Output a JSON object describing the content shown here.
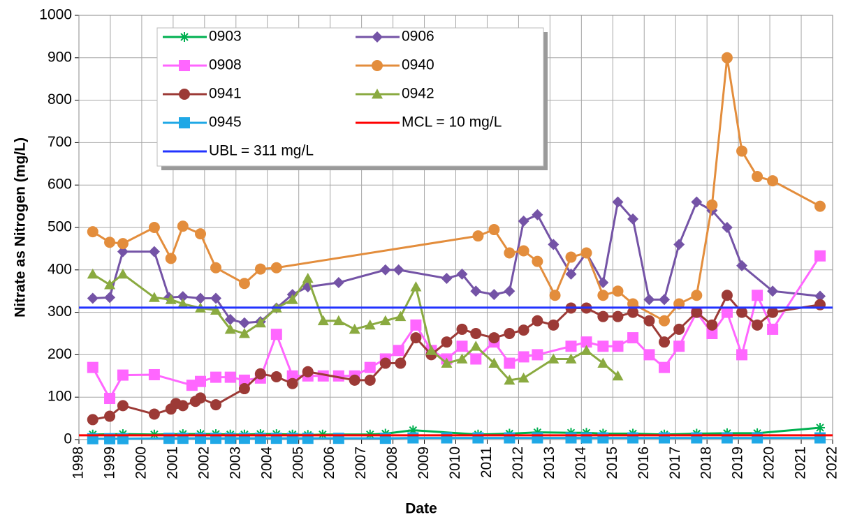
{
  "chart_data": {
    "type": "line",
    "x_label": "Date",
    "y_label": "Nitrate as Nitrogen (mg/L)",
    "xlim": [
      1998,
      2022
    ],
    "xticks": [
      1998,
      1999,
      2000,
      2001,
      2002,
      2003,
      2004,
      2005,
      2006,
      2007,
      2008,
      2009,
      2010,
      2011,
      2012,
      2013,
      2014,
      2015,
      2016,
      2017,
      2018,
      2019,
      2020,
      2021,
      2022
    ],
    "ylim": [
      0,
      1000
    ],
    "yticks": [
      0,
      100,
      200,
      300,
      400,
      500,
      600,
      700,
      800,
      900,
      1000
    ],
    "grid": true,
    "legend": "upper left",
    "series": [
      {
        "name": "0903",
        "color": "#00b050",
        "marker": "asterisk",
        "x": [
          1998.44,
          1999.4,
          2000.4,
          2001.31,
          2001.87,
          2002.36,
          2002.82,
          2003.27,
          2003.78,
          2004.29,
          2004.8,
          2005.29,
          2005.76,
          2007.27,
          2007.76,
          2008.64,
          2010.71,
          2011.71,
          2012.6,
          2013.67,
          2014.16,
          2014.69,
          2015.64,
          2016.64,
          2017.67,
          2018.64,
          2019.6,
          2021.6
        ],
        "values": [
          12,
          13,
          12,
          13,
          13,
          13,
          12,
          12,
          13,
          13,
          12,
          11,
          12,
          12,
          14,
          22,
          12,
          14,
          17,
          16,
          16,
          14,
          14,
          12,
          14,
          15,
          15,
          28
        ]
      },
      {
        "name": "0906",
        "color": "#7453a6",
        "marker": "diamond",
        "x": [
          1998.44,
          1998.98,
          1999.4,
          2000.4,
          2000.87,
          2001.31,
          2001.87,
          2002.36,
          2002.82,
          2003.27,
          2003.78,
          2004.29,
          2004.8,
          2005.29,
          2006.27,
          2007.76,
          2008.18,
          2009.71,
          2010.2,
          2010.64,
          2011.22,
          2011.71,
          2012.16,
          2012.6,
          2013.11,
          2013.67,
          2014.16,
          2014.69,
          2015.16,
          2015.64,
          2016.16,
          2016.64,
          2017.11,
          2017.67,
          2018.16,
          2018.64,
          2019.11,
          2020.09,
          2021.6
        ],
        "values": [
          333,
          335,
          443,
          443,
          335,
          337,
          333,
          333,
          283,
          275,
          278,
          310,
          342,
          360,
          370,
          400,
          400,
          380,
          390,
          350,
          342,
          350,
          515,
          530,
          460,
          390,
          440,
          370,
          560,
          520,
          330,
          330,
          460,
          560,
          540,
          500,
          410,
          350,
          338
        ]
      },
      {
        "name": "0908",
        "color": "#ff66ff",
        "marker": "square",
        "x": [
          1998.44,
          1998.98,
          1999.4,
          2000.4,
          2001.6,
          2001.87,
          2002.36,
          2002.82,
          2003.27,
          2003.78,
          2004.29,
          2004.8,
          2005.29,
          2005.78,
          2006.27,
          2006.78,
          2007.27,
          2007.76,
          2008.18,
          2008.73,
          2009.22,
          2009.71,
          2010.2,
          2010.64,
          2011.22,
          2011.71,
          2012.16,
          2012.6,
          2013.67,
          2014.16,
          2014.69,
          2015.16,
          2015.64,
          2016.16,
          2016.64,
          2017.11,
          2017.67,
          2018.16,
          2018.64,
          2019.11,
          2019.6,
          2020.09,
          2021.6
        ],
        "values": [
          170,
          97,
          152,
          153,
          128,
          137,
          147,
          147,
          140,
          145,
          248,
          150,
          150,
          150,
          150,
          150,
          170,
          190,
          210,
          270,
          210,
          190,
          220,
          190,
          230,
          180,
          195,
          200,
          220,
          230,
          220,
          220,
          240,
          200,
          170,
          220,
          300,
          250,
          300,
          200,
          340,
          260,
          433
        ]
      },
      {
        "name": "0940",
        "color": "#e38d3c",
        "marker": "circle",
        "x": [
          1998.44,
          1998.98,
          1999.4,
          2000.4,
          2000.93,
          2001.31,
          2001.87,
          2002.36,
          2003.27,
          2003.78,
          2004.29,
          2010.71,
          2011.22,
          2011.71,
          2012.16,
          2012.6,
          2013.16,
          2013.67,
          2014.16,
          2014.69,
          2015.16,
          2015.64,
          2016.64,
          2017.11,
          2017.67,
          2018.16,
          2018.64,
          2019.11,
          2019.6,
          2020.09,
          2021.6
        ],
        "values": [
          490,
          465,
          462,
          500,
          427,
          503,
          485,
          405,
          368,
          402,
          405,
          480,
          495,
          440,
          445,
          420,
          340,
          430,
          440,
          340,
          350,
          320,
          280,
          320,
          340,
          553,
          900,
          680,
          620,
          610,
          550
        ]
      },
      {
        "name": "0941",
        "color": "#9c3a36",
        "marker": "circle",
        "x": [
          1998.44,
          1998.98,
          1999.4,
          2000.4,
          2000.93,
          2001.09,
          2001.31,
          2001.71,
          2001.87,
          2002.36,
          2003.27,
          2003.78,
          2004.29,
          2004.8,
          2005.29,
          2006.78,
          2007.27,
          2007.76,
          2008.24,
          2008.73,
          2009.22,
          2009.71,
          2010.2,
          2010.64,
          2011.22,
          2011.71,
          2012.16,
          2012.6,
          2013.11,
          2013.67,
          2014.16,
          2014.69,
          2015.16,
          2015.64,
          2016.16,
          2016.64,
          2017.11,
          2017.67,
          2018.16,
          2018.64,
          2019.11,
          2019.6,
          2020.09,
          2021.6
        ],
        "values": [
          47,
          55,
          80,
          60,
          72,
          85,
          80,
          90,
          98,
          82,
          120,
          155,
          148,
          132,
          160,
          140,
          140,
          180,
          180,
          240,
          200,
          230,
          260,
          250,
          240,
          250,
          258,
          280,
          270,
          310,
          310,
          290,
          290,
          300,
          280,
          230,
          260,
          300,
          270,
          340,
          300,
          270,
          300,
          318
        ]
      },
      {
        "name": "0942",
        "color": "#8aaa40",
        "marker": "triangle",
        "x": [
          1998.44,
          1998.98,
          1999.4,
          2000.4,
          2000.93,
          2001.31,
          2001.87,
          2002.36,
          2002.82,
          2003.27,
          2003.78,
          2004.29,
          2004.8,
          2005.29,
          2005.78,
          2006.27,
          2006.78,
          2007.27,
          2007.76,
          2008.24,
          2008.73,
          2009.22,
          2009.71,
          2010.2,
          2010.64,
          2011.22,
          2011.71,
          2012.16,
          2013.11,
          2013.67,
          2014.16,
          2014.69,
          2015.16
        ],
        "values": [
          390,
          365,
          390,
          335,
          330,
          320,
          310,
          305,
          260,
          250,
          275,
          310,
          330,
          380,
          280,
          280,
          260,
          270,
          280,
          290,
          360,
          210,
          180,
          190,
          220,
          180,
          140,
          145,
          190,
          190,
          210,
          180,
          150
        ]
      },
      {
        "name": "0945",
        "color": "#1fa8e6",
        "marker": "square",
        "x": [
          1998.44,
          1998.98,
          1999.4,
          2000.87,
          2001.31,
          2001.87,
          2002.36,
          2002.82,
          2003.27,
          2003.78,
          2004.29,
          2004.8,
          2005.29,
          2006.27,
          2007.76,
          2008.64,
          2009.71,
          2010.71,
          2011.71,
          2012.6,
          2013.67,
          2014.16,
          2014.69,
          2015.64,
          2016.64,
          2017.67,
          2018.64,
          2019.6,
          2021.6
        ],
        "values": [
          2,
          2,
          2,
          3,
          3,
          3,
          3,
          3,
          3,
          3,
          3,
          3,
          3,
          3,
          3,
          4,
          4,
          4,
          4,
          4,
          4,
          4,
          4,
          4,
          4,
          4,
          4,
          4,
          4
        ]
      },
      {
        "name": "MCL = 10 mg/L",
        "color": "#ff0000",
        "marker": "none",
        "x": [
          1998,
          2022
        ],
        "values": [
          10,
          10
        ]
      },
      {
        "name": "UBL = 311 mg/L",
        "color": "#2233ff",
        "marker": "none",
        "x": [
          1998,
          2022
        ],
        "values": [
          311,
          311
        ]
      }
    ]
  }
}
